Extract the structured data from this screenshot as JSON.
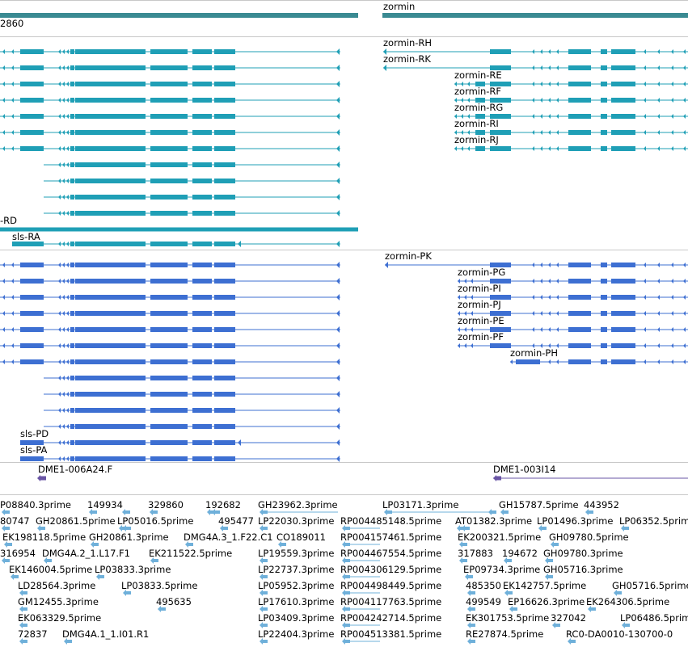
{
  "colors": {
    "teal": "#1f9fb6",
    "blue": "#3d6fd2",
    "gene": "#3a8a92",
    "purple": "#6a55a5",
    "est": "#6fb0da",
    "divider": "#c8c8c8"
  },
  "gene_track": {
    "left_coord": "2860",
    "right_gene": "zormin"
  },
  "teal_track": {
    "labels": [
      "zormin-RH",
      "zormin-RK",
      "zormin-RE",
      "zormin-RF",
      "zormin-RG",
      "zormin-RI",
      "zormin-RJ",
      "-RD",
      "sls-RA"
    ]
  },
  "blue_track": {
    "labels": [
      "zormin-PK",
      "zormin-PG",
      "zormin-PI",
      "zormin-PJ",
      "zormin-PE",
      "zormin-PF",
      "zormin-PH",
      "sls-PD",
      "sls-PA"
    ]
  },
  "purple_track": {
    "labels": [
      "DME1-006A24.F",
      "DME1-003I14"
    ]
  },
  "est_track": {
    "labels": [
      "P08840.3prime",
      "149934",
      "329860",
      "192682",
      "GH23962.3prime",
      "LP03171.3prime",
      "GH15787.5prime",
      "443952",
      "80747",
      "GH20861.5prime",
      "LP05016.5prime",
      "495477",
      "LP22030.3prime",
      "RP004485148.5prime",
      "AT01382.3prime",
      "LP01496.3prime",
      "LP06352.5prime",
      "EK198118.5prime",
      "GH20861.3prime",
      "DMG4A.3_1.F22.C1",
      "CO189011",
      "RP004157461.5prime",
      "EK200321.5prime",
      "GH09780.5prime",
      "316954",
      "DMG4A.2_1.L17.F1",
      "EK211522.5prime",
      "LP19559.3prime",
      "RP004467554.5prime",
      "317883",
      "194672",
      "GH09780.3prime",
      "EK146004.5prime",
      "LP03833.3prime",
      "LP22737.3prime",
      "RP004306129.5prime",
      "EP09734.3prime",
      "GH05716.3prime",
      "LD28564.3prime",
      "LP03833.5prime",
      "LP05952.3prime",
      "RP004498449.5prime",
      "485350",
      "EK142757.5prime",
      "GH05716.5prime",
      "GM12455.3prime",
      "495635",
      "LP17610.3prime",
      "RP004117763.5prime",
      "499549",
      "EP16626.3prime",
      "EK264306.5prime",
      "EK063329.5prime",
      "LP03409.3prime",
      "RP004242714.5prime",
      "EK301753.5prime",
      "327042",
      "LP06486.5prime",
      "72837",
      "DMG4A.1_1.I01.R1",
      "LP22404.3prime",
      "RP004513381.5prime",
      "RE27874.5prime",
      "RC0-DA0010-130700-0"
    ]
  }
}
